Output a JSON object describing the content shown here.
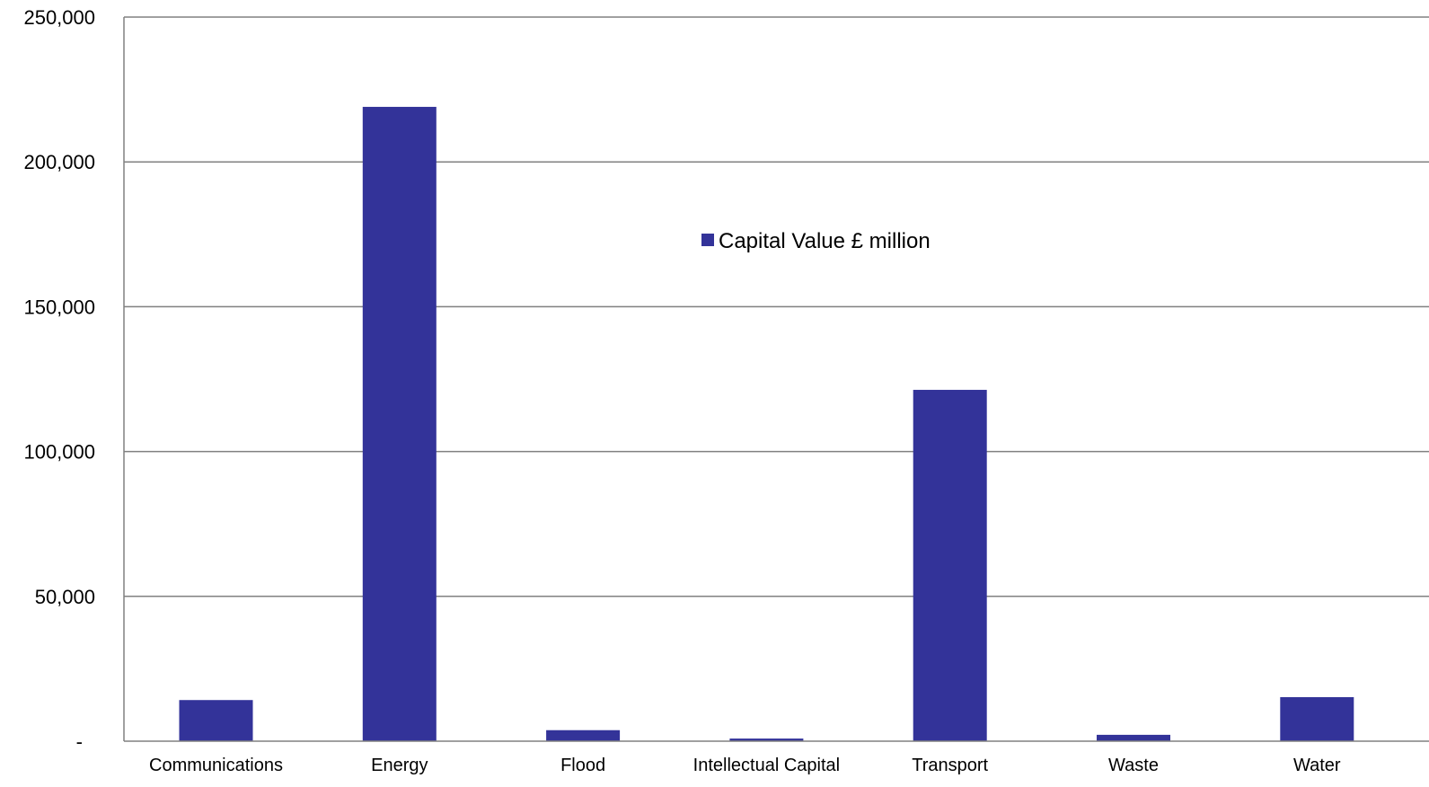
{
  "chart_data": {
    "type": "bar",
    "title": "",
    "xlabel": "",
    "ylabel": "",
    "categories": [
      "Communications",
      "Energy",
      "Flood",
      "Intellectual Capital",
      "Transport",
      "Waste",
      "Water"
    ],
    "series": [
      {
        "name": "Capital Value £ million",
        "color": "#333399",
        "values": [
          14200,
          219000,
          3800,
          900,
          121300,
          2200,
          15200
        ]
      }
    ],
    "ylim": [
      0,
      250000
    ],
    "yticks": [
      0,
      50000,
      100000,
      150000,
      200000,
      250000
    ],
    "ytick_labels": [
      "-",
      "50,000",
      "100,000",
      "150,000",
      "200,000",
      "250,000"
    ],
    "grid": true,
    "legend": {
      "position": "upper-center",
      "label": "Capital Value £ million"
    },
    "colors": {
      "bar": "#333399",
      "grid": "#808080",
      "axis": "#808080"
    }
  }
}
